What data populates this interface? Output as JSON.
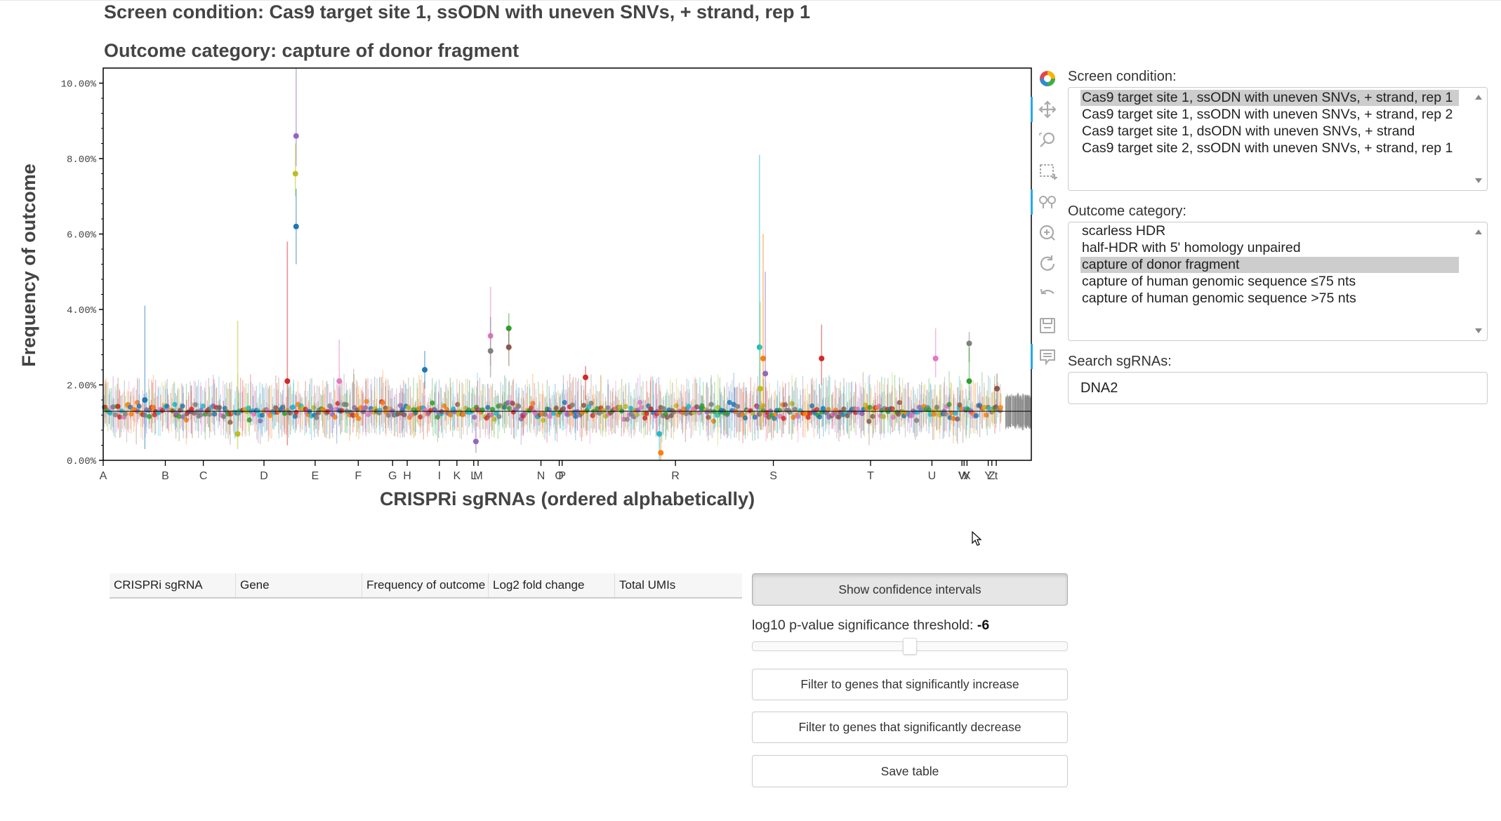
{
  "header": {
    "screen_title": "Screen condition: Cas9 target site 1, ssODN with uneven SNVs, + strand, rep 1",
    "outcome_title": "Outcome category: capture of donor fragment"
  },
  "chart_data": {
    "type": "scatter",
    "xlabel": "CRISPRi sgRNAs (ordered alphabetically)",
    "ylabel": "Frequency of outcome",
    "ylim": [
      0,
      10.4
    ],
    "yticks": [
      "0.00%",
      "2.00%",
      "4.00%",
      "6.00%",
      "8.00%",
      "10.00%"
    ],
    "ytick_values": [
      0,
      2,
      4,
      6,
      8,
      10
    ],
    "xtick_labels": [
      "A",
      "B",
      "C",
      "D",
      "E",
      "F",
      "G",
      "H",
      "I",
      "K",
      "L",
      "M",
      "N",
      "O",
      "P",
      "R",
      "S",
      "T",
      "U",
      "V",
      "W",
      "X",
      "Y",
      "Z",
      "t"
    ],
    "xtick_positions": [
      0,
      85,
      137,
      220,
      290,
      349,
      396,
      416,
      460,
      484,
      507,
      513,
      599,
      624,
      628,
      783,
      917,
      1050,
      1134,
      1175,
      1178,
      1182,
      1211,
      1216,
      1222
    ],
    "x_range": [
      0,
      1270
    ],
    "baseline": 1.3,
    "notable_points": [
      {
        "x": 264,
        "y": 8.6,
        "lo": 7.8,
        "hi": 10.4
      },
      {
        "x": 263,
        "y": 7.6,
        "lo": 7.0,
        "hi": 8.4
      },
      {
        "x": 264,
        "y": 6.2,
        "lo": 5.2,
        "hi": 7.2
      },
      {
        "x": 252,
        "y": 2.1,
        "lo": 0.4,
        "hi": 5.8
      },
      {
        "x": 530,
        "y": 3.3,
        "lo": 2.5,
        "hi": 4.6
      },
      {
        "x": 530,
        "y": 2.9,
        "lo": 2.2,
        "hi": 3.8
      },
      {
        "x": 555,
        "y": 3.5,
        "lo": 2.9,
        "hi": 3.9
      },
      {
        "x": 555,
        "y": 3.0,
        "lo": 2.5,
        "hi": 3.5
      },
      {
        "x": 898,
        "y": 3.0,
        "lo": 1.2,
        "hi": 8.1
      },
      {
        "x": 903,
        "y": 2.7,
        "lo": 1.0,
        "hi": 6.0
      },
      {
        "x": 906,
        "y": 2.3,
        "lo": 0.9,
        "hi": 5.0
      },
      {
        "x": 899,
        "y": 1.9,
        "lo": 0.8,
        "hi": 4.2
      },
      {
        "x": 440,
        "y": 2.4,
        "lo": 1.9,
        "hi": 2.9
      },
      {
        "x": 983,
        "y": 2.7,
        "lo": 2.0,
        "hi": 3.6
      },
      {
        "x": 1139,
        "y": 2.7,
        "lo": 2.2,
        "hi": 3.5
      },
      {
        "x": 1185,
        "y": 3.1,
        "lo": 2.6,
        "hi": 3.4
      },
      {
        "x": 1185,
        "y": 2.1,
        "lo": 1.6,
        "hi": 3.0
      },
      {
        "x": 1223,
        "y": 1.9,
        "lo": 1.4,
        "hi": 2.3
      },
      {
        "x": 761,
        "y": 0.7,
        "lo": 0.0,
        "hi": 1.2
      },
      {
        "x": 763,
        "y": 0.2,
        "lo": 0.0,
        "hi": 0.7
      },
      {
        "x": 510,
        "y": 0.5,
        "lo": 0.2,
        "hi": 1.0
      },
      {
        "x": 184,
        "y": 0.7,
        "lo": 0.3,
        "hi": 3.7
      },
      {
        "x": 57,
        "y": 1.6,
        "lo": 0.3,
        "hi": 4.1
      },
      {
        "x": 660,
        "y": 2.2,
        "lo": 1.6,
        "hi": 2.5
      },
      {
        "x": 323,
        "y": 2.1,
        "lo": 1.5,
        "hi": 3.2
      }
    ]
  },
  "toolbar": {
    "tools": [
      "bokeh-logo",
      "pan",
      "box-zoom",
      "box-select",
      "wheel-zoom",
      "zoom-in",
      "reset",
      "undo",
      "save",
      "hover"
    ]
  },
  "screen_condition": {
    "label": "Screen condition:",
    "options": [
      "Cas9 target site 1, ssODN with uneven SNVs, + strand, rep 1",
      "Cas9 target site 1, ssODN with uneven SNVs, + strand, rep 2",
      "Cas9 target site 1, dsODN with uneven SNVs, + strand",
      "Cas9 target site 2, ssODN with uneven SNVs, + strand, rep 1"
    ],
    "selected_index": 0
  },
  "outcome_category": {
    "label": "Outcome category:",
    "options": [
      "scarless HDR",
      "half-HDR with 5' homology unpaired",
      "capture of donor fragment",
      "capture of human genomic sequence ≤75 nts",
      "capture of human genomic sequence >75 nts"
    ],
    "selected_index": 2
  },
  "search": {
    "label": "Search sgRNAs:",
    "value": "DNA2"
  },
  "table": {
    "columns": [
      "CRISPRi sgRNA",
      "Gene",
      "Frequency of outcome",
      "Log2 fold change",
      "Total UMIs"
    ]
  },
  "controls": {
    "ci_button": "Show confidence intervals",
    "threshold_label": "log10 p-value significance threshold: ",
    "threshold_value": "-6",
    "threshold_fraction": 0.5,
    "increase_button": "Filter to genes that significantly increase",
    "decrease_button": "Filter to genes that significantly decrease",
    "save_button": "Save table"
  }
}
